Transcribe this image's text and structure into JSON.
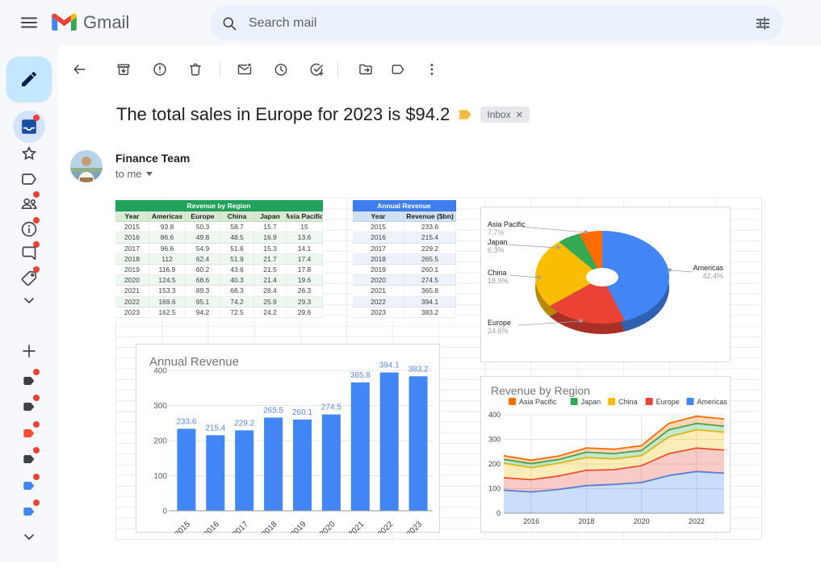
{
  "chrome": {
    "app_name": "Gmail",
    "search_placeholder": "Search mail"
  },
  "toolbar": {
    "items": [
      {
        "name": "back-button",
        "icon": "back-arrow-icon"
      },
      {
        "name": "archive-button",
        "icon": "archive-icon"
      },
      {
        "name": "report-spam-button",
        "icon": "report-spam-icon"
      },
      {
        "name": "delete-button",
        "icon": "trash-icon"
      },
      {
        "name": "divider"
      },
      {
        "name": "mark-unread-button",
        "icon": "mark-unread-icon"
      },
      {
        "name": "snooze-button",
        "icon": "snooze-icon"
      },
      {
        "name": "add-to-tasks-button",
        "icon": "add-to-tasks-icon"
      },
      {
        "name": "divider"
      },
      {
        "name": "move-to-button",
        "icon": "move-to-icon"
      },
      {
        "name": "labels-button",
        "icon": "label-icon"
      },
      {
        "name": "more-button",
        "icon": "more-vert-icon"
      }
    ]
  },
  "sidebar": {
    "items": [
      {
        "name": "inbox",
        "icon": "inbox-filled-icon",
        "selected": true,
        "dot": true
      },
      {
        "name": "starred",
        "icon": "star-icon"
      },
      {
        "name": "labels-nav",
        "icon": "label-outline-icon"
      },
      {
        "name": "contacts",
        "icon": "people-icon",
        "dot": true
      },
      {
        "name": "info",
        "icon": "info-icon",
        "dot": true
      },
      {
        "name": "chat",
        "icon": "chat-icon",
        "dot": true
      },
      {
        "name": "offers",
        "icon": "tag-icon",
        "dot": true
      },
      {
        "name": "show-more",
        "icon": "chevron-down-icon"
      },
      {
        "name": "add-label",
        "icon": "plus-icon"
      },
      {
        "name": "label-1",
        "icon": "label-filled-icon",
        "color": "#3c4043",
        "dot": true
      },
      {
        "name": "label-2",
        "icon": "label-filled-icon",
        "color": "#3c4043",
        "dot": true
      },
      {
        "name": "label-3",
        "icon": "label-filled-icon",
        "color": "#fb4c2f",
        "dot": true
      },
      {
        "name": "label-4",
        "icon": "label-filled-icon",
        "color": "#3c4043",
        "dot": true
      },
      {
        "name": "label-5",
        "icon": "label-filled-icon",
        "color": "#4285f4",
        "dot": true
      },
      {
        "name": "label-6",
        "icon": "label-filled-icon",
        "color": "#4285f4",
        "dot": true
      },
      {
        "name": "show-more-2",
        "icon": "chevron-down-icon"
      }
    ]
  },
  "email": {
    "subject": "The total sales in Europe for 2023 is $94.2",
    "label_chip": "Inbox",
    "sender": "Finance Team",
    "recipient_line": "to me"
  },
  "tables": [
    {
      "id": "revenue_by_region",
      "title": "Revenue by Region",
      "columns": [
        "Year",
        "Americas",
        "Europe",
        "China",
        "Japan",
        "Asia Pacific"
      ],
      "rows": [
        [
          2015,
          93.8,
          50.3,
          58.7,
          15.7,
          15
        ],
        [
          2016,
          86.6,
          49.8,
          48.5,
          16.9,
          13.6
        ],
        [
          2017,
          96.6,
          54.9,
          51.6,
          15.3,
          14.1
        ],
        [
          2018,
          112,
          62.4,
          51.9,
          21.7,
          17.4
        ],
        [
          2019,
          116.9,
          60.2,
          43.6,
          21.5,
          17.8
        ],
        [
          2020,
          124.5,
          68.6,
          40.3,
          21.4,
          19.6
        ],
        [
          2021,
          153.3,
          89.3,
          68.3,
          28.4,
          26.3
        ],
        [
          2022,
          169.6,
          95.1,
          74.2,
          25.9,
          29.3
        ],
        [
          2023,
          162.5,
          94.2,
          72.5,
          24.2,
          29.6
        ]
      ],
      "theme": {
        "head": "#21a35c",
        "sub": "#d9ead3",
        "alt": "#eff7f1"
      }
    },
    {
      "id": "annual_revenue",
      "title": "Annual Revenue",
      "columns": [
        "Year",
        "Revenue ($bn)"
      ],
      "rows": [
        [
          2015,
          233.6
        ],
        [
          2016,
          215.4
        ],
        [
          2017,
          229.2
        ],
        [
          2018,
          265.5
        ],
        [
          2019,
          260.1
        ],
        [
          2020,
          274.5
        ],
        [
          2021,
          365.8
        ],
        [
          2022,
          394.1
        ],
        [
          2023,
          383.2
        ]
      ],
      "theme": {
        "head": "#3d7ef0",
        "sub": "#cfe2f3",
        "alt": "#eef3fb"
      }
    }
  ],
  "chart_data": [
    {
      "type": "pie",
      "style": "3d-donut",
      "slices": [
        {
          "label": "Americas",
          "pct": 42.4,
          "color": "#4285f4"
        },
        {
          "label": "Europe",
          "pct": 24.6,
          "color": "#ea4335"
        },
        {
          "label": "China",
          "pct": 18.9,
          "color": "#fbbc04"
        },
        {
          "label": "Japan",
          "pct": 6.3,
          "color": "#34a853"
        },
        {
          "label": "Asia Pacific",
          "pct": 7.7,
          "color": "#ff6d01"
        }
      ]
    },
    {
      "type": "bar",
      "title": "Annual Revenue",
      "categories": [
        "2015",
        "2016",
        "2017",
        "2018",
        "2019",
        "2020",
        "2021",
        "2022",
        "2023"
      ],
      "values": [
        233.6,
        215.4,
        229.2,
        265.5,
        260.1,
        274.5,
        365.8,
        394.1,
        383.2
      ],
      "y_ticks": [
        0,
        100,
        200,
        300,
        400
      ],
      "ylim": [
        0,
        400
      ],
      "bar_color": "#4285f4",
      "label_color": "#5b87e5",
      "grid": true
    },
    {
      "type": "area",
      "title": "Revenue by Region",
      "x": [
        2015,
        2016,
        2017,
        2018,
        2019,
        2020,
        2021,
        2022,
        2023
      ],
      "x_ticks": [
        2016,
        2018,
        2020,
        2022
      ],
      "y_ticks": [
        0,
        100,
        200,
        300,
        400
      ],
      "ylim": [
        0,
        400
      ],
      "legend_position": "top",
      "legend_order": [
        "Asia Pacific",
        "Japan",
        "China",
        "Europe",
        "Americas"
      ],
      "stack_order": [
        "Americas",
        "Europe",
        "China",
        "Japan",
        "Asia Pacific"
      ],
      "series": [
        {
          "name": "Americas",
          "color": "#4285f4",
          "values": [
            93.8,
            86.6,
            96.6,
            112,
            116.9,
            124.5,
            153.3,
            169.6,
            162.5
          ]
        },
        {
          "name": "Europe",
          "color": "#ea4335",
          "values": [
            50.3,
            49.8,
            54.9,
            62.4,
            60.2,
            68.6,
            89.3,
            95.1,
            94.2
          ]
        },
        {
          "name": "China",
          "color": "#fbbc04",
          "values": [
            58.7,
            48.5,
            51.6,
            51.9,
            43.6,
            40.3,
            68.3,
            74.2,
            72.5
          ]
        },
        {
          "name": "Japan",
          "color": "#34a853",
          "values": [
            15.7,
            16.9,
            15.3,
            21.7,
            21.5,
            21.4,
            28.4,
            25.9,
            24.2
          ]
        },
        {
          "name": "Asia Pacific",
          "color": "#ff6d01",
          "values": [
            15,
            13.6,
            14.1,
            17.4,
            17.8,
            19.6,
            26.3,
            29.3,
            29.6
          ]
        }
      ]
    }
  ],
  "colors": {
    "accent_blue": "#4285f4",
    "dot_red": "#ea4335",
    "importance_yellow": "#f5ba3c",
    "green_table_header": "#21a35c",
    "blue_table_header": "#3d7ef0"
  }
}
